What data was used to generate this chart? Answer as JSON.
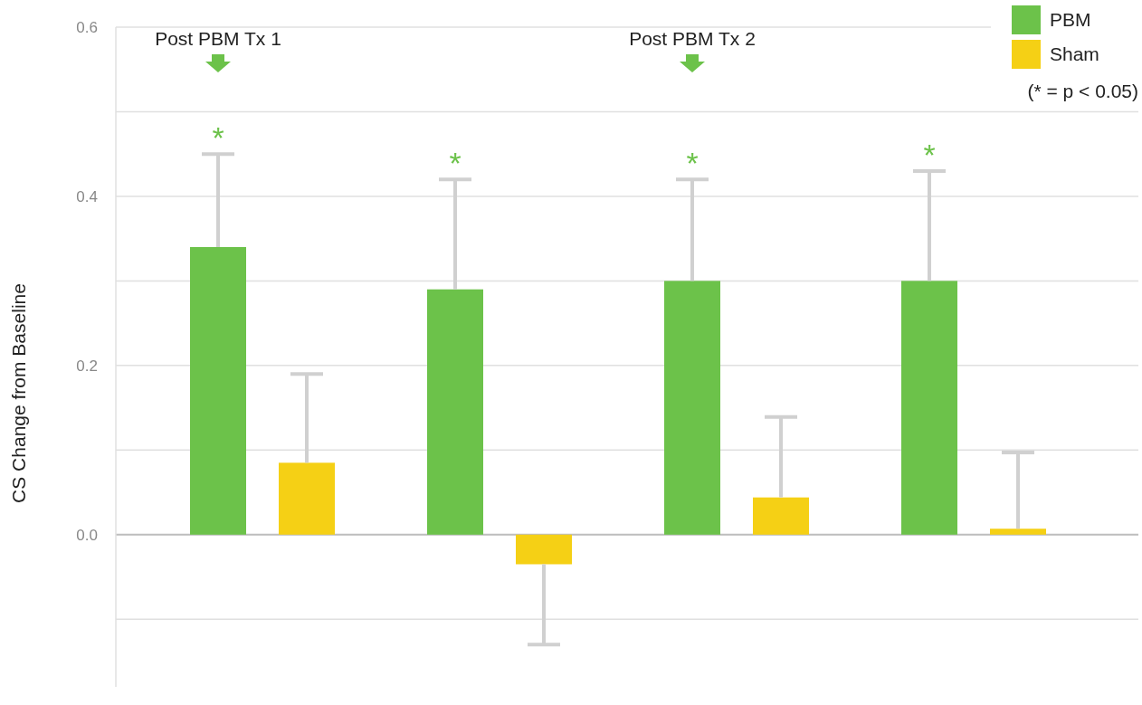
{
  "chart_data": {
    "type": "bar",
    "ylabel": "CS Change from Baseline",
    "categories": [
      null,
      null,
      null,
      null
    ],
    "series": [
      {
        "name": "PBM",
        "color": "#6cc24a",
        "values": [
          0.34,
          0.29,
          0.3,
          0.3
        ],
        "errors": [
          [
            0.34,
            0.45
          ],
          [
            0.29,
            0.42
          ],
          [
            0.3,
            0.42
          ],
          [
            0.3,
            0.43
          ]
        ]
      },
      {
        "name": "Sham",
        "color": "#f5d015",
        "values": [
          0.085,
          -0.035,
          0.044,
          0.007
        ],
        "errors": [
          [
            0.085,
            0.19
          ],
          [
            -0.13,
            -0.035
          ],
          [
            0.044,
            0.139
          ],
          [
            0.007,
            0.097
          ]
        ]
      }
    ],
    "ylim": [
      -0.18,
      0.6
    ],
    "yticks": [
      {
        "value": -0.1,
        "label": null
      },
      {
        "value": 0,
        "label": "0.0"
      },
      {
        "value": 0.1,
        "label": null
      },
      {
        "value": 0.2,
        "label": "0.2"
      },
      {
        "value": 0.3,
        "label": null
      },
      {
        "value": 0.4,
        "label": "0.4"
      },
      {
        "value": 0.5,
        "label": null
      },
      {
        "value": 0.6,
        "label": "0.6"
      }
    ],
    "grid": "y",
    "legend": "top right",
    "annotations": [
      "Post PBM Tx 1",
      "Post PBM Tx 2",
      "*",
      "*",
      "*",
      "*",
      "(* = p < 0.05)"
    ]
  }
}
